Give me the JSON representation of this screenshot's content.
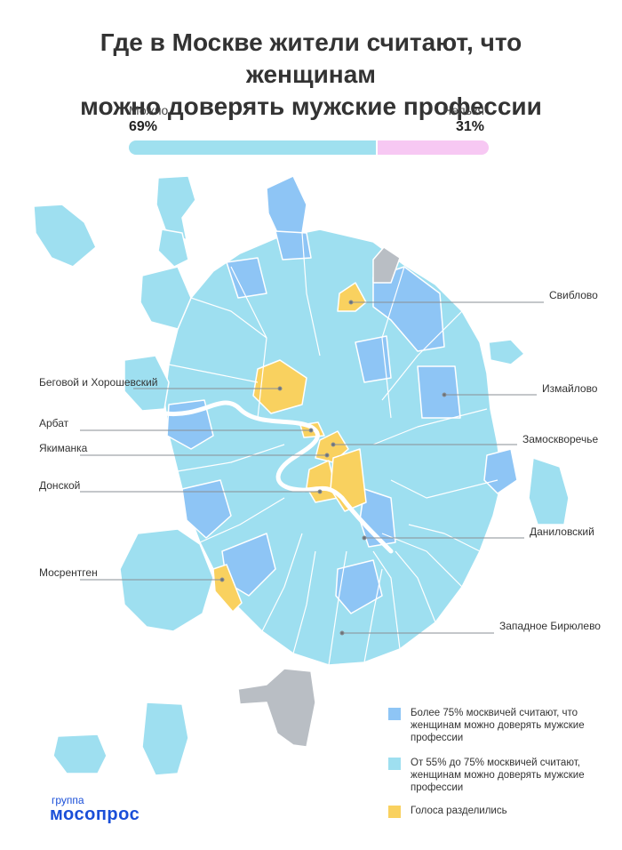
{
  "title_line1": "Где в Москве жители считают, что женщинам",
  "title_line2": "можно доверять мужские профессии",
  "poll": {
    "yes_label": "Можно",
    "yes_value": "69%",
    "yes_fraction": 0.69,
    "no_label": "Нельзя",
    "no_value": "31%",
    "no_fraction": 0.31
  },
  "colors": {
    "more75": "#8ec5f5",
    "from55to75": "#9edff0",
    "split": "#f9d15f",
    "nodata": "#b9bec4",
    "bar_yes": "#9fe0ef",
    "bar_no": "#f7c8f3",
    "brand": "#1a4fd8"
  },
  "callouts": [
    {
      "id": "sviblovo",
      "label": "Свиблово"
    },
    {
      "id": "begovoy",
      "label": "Беговой и Хорошевский"
    },
    {
      "id": "izmaylovo",
      "label": "Измайлово"
    },
    {
      "id": "arbat",
      "label": "Арбат"
    },
    {
      "id": "zamoskvorechye",
      "label": "Замоскворечье"
    },
    {
      "id": "yakimanka",
      "label": "Якиманка"
    },
    {
      "id": "donskoy",
      "label": "Донской"
    },
    {
      "id": "danilovsky",
      "label": "Даниловский"
    },
    {
      "id": "mosrentgen",
      "label": "Мосрентген"
    },
    {
      "id": "biryulevo",
      "label": "Западное Бирюлево"
    }
  ],
  "legend": [
    {
      "label": "Более 75% москвичей считают, что женщинам можно доверять мужские профессии"
    },
    {
      "label": "От 55% до 75% москвичей считают, женщинам можно доверять мужские профессии"
    },
    {
      "label": "Голоса разделились"
    }
  ],
  "brand": {
    "line1": "группа",
    "line2": "мосопрос"
  }
}
